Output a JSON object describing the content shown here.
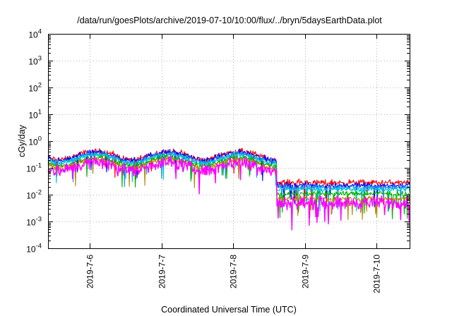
{
  "chart_data": {
    "type": "line",
    "title": "/data/run/goesPlots/archive/2019-07-10/10:00/flux/../bryn/5daysEarthData.plot",
    "xlabel": "Coordinated Universal Time (UTC)",
    "ylabel": "cGy/day",
    "y_scale": "log",
    "ylim": [
      0.0001,
      10000
    ],
    "y_ticks": [
      {
        "base": "10",
        "exp": "-4"
      },
      {
        "base": "10",
        "exp": "-3"
      },
      {
        "base": "10",
        "exp": "-2"
      },
      {
        "base": "10",
        "exp": "-1"
      },
      {
        "base": "10",
        "exp": "0"
      },
      {
        "base": "10",
        "exp": "1"
      },
      {
        "base": "10",
        "exp": "2"
      },
      {
        "base": "10",
        "exp": "3"
      },
      {
        "base": "10",
        "exp": "4"
      }
    ],
    "xlim": [
      "2019-07-05 10:00",
      "2019-07-10 11:00"
    ],
    "x_ticks": [
      "2019-7-6",
      "2019-7-7",
      "2019-7-8",
      "2019-7-9",
      "2019-7-10"
    ],
    "x_tick_dates": [
      "2019-07-06",
      "2019-07-07",
      "2019-07-08",
      "2019-07-09",
      "2019-07-10"
    ],
    "grid": true,
    "drop_time": "2019-07-08 14:30",
    "series": [
      {
        "color": "#ff0000",
        "before_drop": 0.3,
        "after_drop": 0.028,
        "noise": 0.12
      },
      {
        "color": "#0000ff",
        "before_drop": 0.28,
        "after_drop": 0.022,
        "noise": 0.12
      },
      {
        "color": "#1e90ff",
        "before_drop": 0.25,
        "after_drop": 0.019,
        "noise": 0.1
      },
      {
        "color": "#00c8c8",
        "before_drop": 0.22,
        "after_drop": 0.016,
        "noise": 0.1
      },
      {
        "color": "#00b000",
        "before_drop": 0.18,
        "after_drop": 0.011,
        "noise": 0.1
      },
      {
        "color": "#b8860b",
        "before_drop": 0.15,
        "after_drop": 0.007,
        "noise": 0.1
      },
      {
        "color": "#ff00ff",
        "before_drop": 0.12,
        "after_drop": 0.005,
        "noise": 0.25
      }
    ]
  }
}
